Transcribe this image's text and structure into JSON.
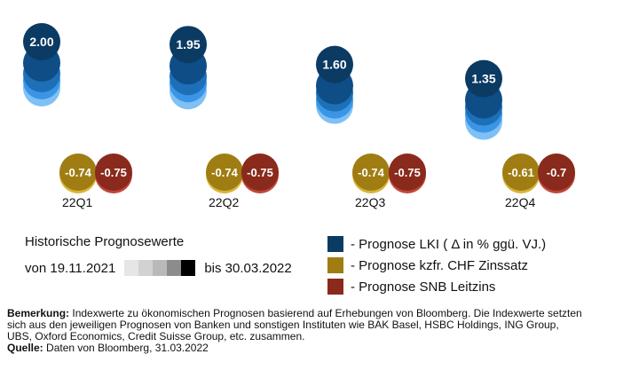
{
  "chart_data": {
    "type": "scatter",
    "categories": [
      "22Q1",
      "22Q2",
      "22Q3",
      "22Q4"
    ],
    "series": [
      {
        "name": "- Prognose LKI ( Δ in % ggü. VJ.)",
        "color": "#0b3a63",
        "values": [
          2.0,
          1.95,
          1.6,
          1.35
        ],
        "labels": [
          "2.00",
          "1.95",
          "1.60",
          "1.35"
        ]
      },
      {
        "name": "- Prognose kzfr. CHF Zinssatz",
        "color": "#a07d12",
        "values": [
          -0.74,
          -0.74,
          -0.74,
          -0.61
        ],
        "labels": [
          "-0.74",
          "-0.74",
          "-0.74",
          "-0.61"
        ]
      },
      {
        "name": "- Prognose SNB Leitzins",
        "color": "#8a2a1c",
        "values": [
          -0.75,
          -0.75,
          -0.75,
          -0.7
        ],
        "labels": [
          "-0.75",
          "-0.75",
          "-0.75",
          "-0.7"
        ]
      }
    ],
    "history_colors": [
      "#0e4d86",
      "#1d6fb8",
      "#3a95e6",
      "#7fc0f5"
    ],
    "history_series_colors": {
      "zins": [
        "#c9a227",
        "#d9b43a"
      ],
      "snb": [
        "#a53a2a",
        "#c0473a"
      ]
    }
  },
  "legend": {
    "history_title": "Historische Prognosewerte",
    "history_from": "von 19.11.2021",
    "history_to": "bis 30.03.2022",
    "grey_scale": [
      "#e6e6e6",
      "#d2d2d2",
      "#b9b9b9",
      "#8c8c8c",
      "#000000"
    ]
  },
  "note": {
    "remark_label": "Bemerkung:",
    "remark_text": "Indexwerte zu ökonomischen Prognosen basierend auf Erhebungen von Bloomberg. Die Indexwerte setzten sich aus den jeweiligen Prognosen von Banken und sonstigen Instituten wie BAK Basel, HSBC Holdings, ING Group, UBS, Oxford Economics, Credit Suisse Group, etc. zusammen.",
    "source_label": "Quelle:",
    "source_text": "Daten von Bloomberg, 31.03.2022"
  }
}
